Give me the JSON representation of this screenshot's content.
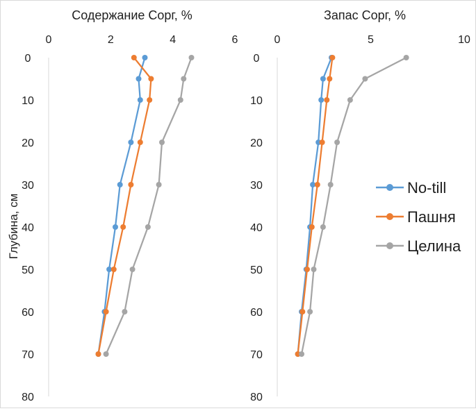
{
  "chart_data": [
    {
      "type": "line",
      "title": "Содержание Сорг, %",
      "xlabel": "",
      "ylabel": "Глубина, см",
      "xlim": [
        0,
        6
      ],
      "ylim": [
        0,
        80
      ],
      "x_ticks": [
        "0",
        "2",
        "4",
        "6"
      ],
      "y_ticks": [
        "0",
        "10",
        "20",
        "30",
        "40",
        "50",
        "60",
        "70",
        "80"
      ],
      "y_inverted": true,
      "grid": false,
      "depth": [
        0,
        5,
        10,
        20,
        30,
        40,
        50,
        60,
        70
      ],
      "series": [
        {
          "name": "No-till",
          "color": "#5b9bd5",
          "values": [
            3.1,
            2.9,
            2.95,
            2.65,
            2.3,
            2.15,
            1.95,
            1.8,
            1.6
          ]
        },
        {
          "name": "Пашня",
          "color": "#ed7d31",
          "values": [
            2.75,
            3.3,
            3.25,
            2.95,
            2.65,
            2.4,
            2.1,
            1.85,
            1.6
          ]
        },
        {
          "name": "Целина",
          "color": "#a5a5a5",
          "values": [
            4.6,
            4.35,
            4.25,
            3.65,
            3.55,
            3.2,
            2.7,
            2.45,
            1.85
          ]
        }
      ]
    },
    {
      "type": "line",
      "title": "Запас Сорг, %",
      "xlabel": "",
      "ylabel": "",
      "xlim": [
        0,
        10
      ],
      "ylim": [
        0,
        80
      ],
      "x_ticks": [
        "0",
        "5",
        "10"
      ],
      "y_ticks": [
        "0",
        "10",
        "20",
        "30",
        "40",
        "50",
        "60",
        "70",
        "80"
      ],
      "y_inverted": true,
      "grid": false,
      "legend": "right",
      "depth": [
        0,
        5,
        10,
        20,
        30,
        40,
        50,
        60,
        70
      ],
      "series": [
        {
          "name": "No-till",
          "color": "#5b9bd5",
          "values": [
            2.9,
            2.45,
            2.35,
            2.2,
            1.9,
            1.75,
            1.55,
            1.3,
            1.1
          ]
        },
        {
          "name": "Пашня",
          "color": "#ed7d31",
          "values": [
            2.95,
            2.8,
            2.65,
            2.4,
            2.15,
            1.85,
            1.6,
            1.35,
            1.1
          ]
        },
        {
          "name": "Целина",
          "color": "#a5a5a5",
          "values": [
            6.9,
            4.7,
            3.9,
            3.2,
            2.85,
            2.45,
            1.95,
            1.75,
            1.3
          ]
        }
      ]
    }
  ]
}
